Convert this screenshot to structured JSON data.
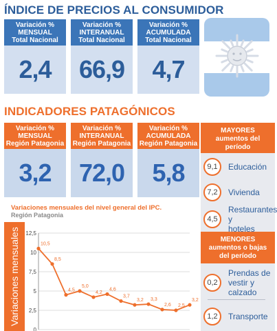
{
  "national": {
    "title": "ÍNDICE DE PRECIOS AL CONSUMIDOR",
    "cards": [
      {
        "l1": "Variación %",
        "l2": "MENSUAL",
        "l3": "Total Nacional",
        "value": "2,4"
      },
      {
        "l1": "Variación %",
        "l2": "INTERANUAL",
        "l3": "Total Nacional",
        "value": "66,9"
      },
      {
        "l1": "Variación %",
        "l2": "ACUMULADA",
        "l3": "Total Nacional",
        "value": "4,7"
      }
    ],
    "flag_icon": "sol-de-mayo-icon"
  },
  "patagonia": {
    "title": "INDICADORES PATAGÓNICOS",
    "cards": [
      {
        "l1": "Variación %",
        "l2": "MENSUAL",
        "l3": "Región Patagonia",
        "value": "3,2"
      },
      {
        "l1": "Variación %",
        "l2": "INTERANUAL",
        "l3": "Región Patagonia",
        "value": "72,0"
      },
      {
        "l1": "Variación %",
        "l2": "ACUMULADA",
        "l3": "Región Patagonia",
        "value": "5,8"
      }
    ]
  },
  "sidebar": {
    "mayores": {
      "l1": "MAYORES",
      "l2": "aumentos del",
      "l3": "período"
    },
    "mayores_items": [
      {
        "value": "9,1",
        "label": "Educación"
      },
      {
        "value": "7,2",
        "label": "Vivienda"
      },
      {
        "value": "4,5",
        "label1": "Restaurantes y",
        "label2": "hoteles"
      }
    ],
    "menores": {
      "l1": "MENORES",
      "l2": "aumentos o bajas",
      "l3": "del período"
    },
    "menores_items": [
      {
        "value": "0,2",
        "label1": "Prendas de",
        "label2": "vestir y calzado"
      },
      {
        "value": "1,2",
        "label": "Transporte"
      }
    ]
  },
  "colors": {
    "blue": "#2c5d9a",
    "orange": "#ee6f2c",
    "light_blue": "#d3dff0"
  },
  "chart_data": {
    "type": "line",
    "title": "Variaciones mensuales del nivel general del IPC.",
    "subtitle": "Región Patagonia",
    "ylabel": "Variaciones mensuales",
    "ylim": [
      0,
      12.5
    ],
    "yticks": [
      "0",
      "2,5",
      "5",
      "7,5",
      "10",
      "12,5"
    ],
    "yticks_values": [
      0,
      2.5,
      5,
      7.5,
      10,
      12.5
    ],
    "series": [
      {
        "values": [
          10.5,
          8.5,
          4.5,
          5.0,
          4.2,
          4.6,
          3.7,
          3.2,
          3.3,
          2.6,
          2.5,
          3.2
        ],
        "labels": [
          "10,5",
          "8,5",
          "4,5",
          "5,0",
          "4,2",
          "4,6",
          "3,7",
          "3,2",
          "3,3",
          "2,6",
          "2,5",
          "3,2"
        ]
      }
    ],
    "grid": true,
    "line_color": "#ee6f2c"
  }
}
